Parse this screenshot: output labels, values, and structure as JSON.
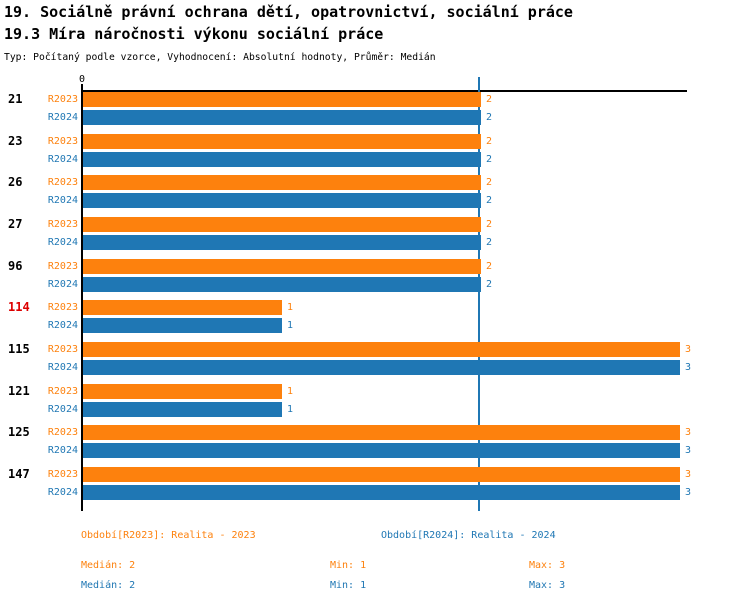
{
  "header": {
    "title_line1": "19. Sociálně právní ochrana dětí, opatrovnictví, sociální práce",
    "title_line2": "19.3 Míra náročnosti výkonu sociální práce",
    "subtitle": "Typ: Počítaný podle vzorce, Vyhodnocení: Absolutní hodnoty, Průměr: Medián"
  },
  "chart_data": {
    "type": "bar",
    "orientation": "horizontal",
    "title": "19.3 Míra náročnosti výkonu sociální práce",
    "categories": [
      "21",
      "23",
      "26",
      "27",
      "96",
      "114",
      "115",
      "121",
      "125",
      "147"
    ],
    "highlighted_categories": [
      "114"
    ],
    "series": [
      {
        "name": "R2023",
        "legend": "Realita - 2023",
        "color": "#fd810d",
        "values": [
          2,
          2,
          2,
          2,
          2,
          1,
          3,
          1,
          3,
          3
        ],
        "median": 2,
        "min": 1,
        "max": 3
      },
      {
        "name": "R2024",
        "legend": "Realita - 2024",
        "color": "#1f77b4",
        "values": [
          2,
          2,
          2,
          2,
          2,
          1,
          3,
          1,
          3,
          3
        ],
        "median": 2,
        "min": 1,
        "max": 3
      }
    ],
    "xlim": [
      0,
      3
    ],
    "x_tick_labels": [
      "0"
    ],
    "zero_tick_label": "0",
    "median_line_value": 2,
    "value_labels_shown": true,
    "grid": false,
    "legend_position": "bottom"
  },
  "legend": {
    "series": [
      {
        "period_label": "Období[R2023]: Realita - 2023",
        "median": "Medián: 2",
        "min": "Min: 1",
        "max": "Max: 3"
      },
      {
        "period_label": "Období[R2024]: Realita - 2024",
        "median": "Medián: 2",
        "min": "Min: 1",
        "max": "Max: 3"
      }
    ]
  },
  "colors": {
    "series_r2023": "#fd810d",
    "series_r2024": "#1f77b4",
    "highlighted_category": "#dd0000",
    "axis": "#000000",
    "background": "#ffffff"
  }
}
